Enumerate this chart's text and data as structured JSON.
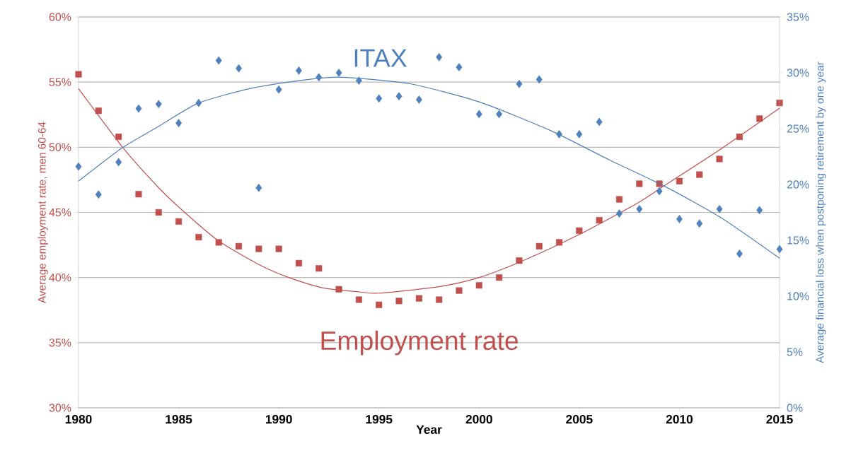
{
  "chart_data": {
    "type": "scatter",
    "xlabel": "Year",
    "ylabel": "Average employment rate, men 60-64",
    "y2label": "Average financial loss when postponing retirement by one year",
    "x": [
      1980,
      1981,
      1982,
      1983,
      1984,
      1985,
      1986,
      1987,
      1988,
      1989,
      1990,
      1991,
      1992,
      1993,
      1994,
      1995,
      1996,
      1997,
      1998,
      1999,
      2000,
      2001,
      2002,
      2003,
      2004,
      2005,
      2006,
      2007,
      2008,
      2009,
      2010,
      2011,
      2012,
      2013,
      2014,
      2015
    ],
    "series": [
      {
        "name": "Employment rate",
        "marker": "square",
        "color": "#c0504d",
        "values": [
          55.6,
          52.8,
          50.8,
          46.4,
          45.0,
          44.3,
          43.1,
          42.7,
          42.4,
          42.2,
          42.2,
          41.1,
          40.7,
          39.1,
          38.3,
          37.9,
          38.2,
          38.4,
          38.3,
          39.0,
          39.4,
          40.0,
          41.3,
          42.4,
          42.7,
          43.6,
          44.4,
          46.0,
          47.2,
          47.2,
          47.4,
          47.9,
          49.1,
          50.8,
          52.2,
          53.4
        ]
      },
      {
        "name": "ITAX",
        "marker": "diamond",
        "axis": "y2",
        "color": "#4f81bd",
        "values": [
          21.6,
          19.1,
          22.0,
          26.8,
          27.2,
          25.5,
          27.3,
          31.1,
          30.4,
          19.7,
          28.5,
          30.2,
          29.6,
          30.0,
          29.3,
          27.7,
          27.9,
          27.6,
          31.4,
          30.5,
          26.3,
          26.3,
          29.0,
          29.4,
          24.5,
          24.5,
          25.6,
          17.4,
          17.8,
          19.4,
          16.9,
          16.5,
          17.8,
          13.8,
          17.7,
          14.2
        ]
      },
      {
        "type": "line",
        "marker": "none",
        "color": "#c0504d",
        "x": [
          1980,
          1982.2,
          1984,
          1985.3,
          1987,
          1989,
          1990.5,
          1992.2,
          1994,
          1995,
          1998,
          2000,
          2002.2,
          2005,
          2007.9,
          2009.3,
          2012.1,
          2015
        ],
        "values": [
          54.5,
          50.0,
          46.9,
          45.0,
          42.8,
          41.0,
          40.0,
          39.2,
          38.9,
          38.8,
          39.3,
          40.0,
          41.3,
          43.3,
          45.7,
          47.1,
          49.9,
          53.0
        ]
      },
      {
        "type": "line",
        "marker": "none",
        "axis": "y2",
        "color": "#4f81bd",
        "x": [
          1980,
          1982.2,
          1984,
          1986,
          1988.6,
          1991,
          1992.7,
          1994,
          1996.6,
          2000,
          2003.6,
          2006.5,
          2009.3,
          2012.1,
          2015
        ],
        "values": [
          20.3,
          23.3,
          25.2,
          27.3,
          28.6,
          29.3,
          29.6,
          29.5,
          29.0,
          27.4,
          24.8,
          22.2,
          19.8,
          17.0,
          13.4
        ]
      }
    ],
    "xlim": [
      1980,
      2015
    ],
    "xticks": [
      1980,
      1985,
      1990,
      1995,
      2000,
      2005,
      2010,
      2015
    ],
    "ylim": [
      30,
      60
    ],
    "yticks": [
      {
        "value": 30,
        "label": "30%"
      },
      {
        "value": 35,
        "label": "35%"
      },
      {
        "value": 40,
        "label": "40%"
      },
      {
        "value": 45,
        "label": "45%"
      },
      {
        "value": 50,
        "label": "50%"
      },
      {
        "value": 55,
        "label": "55%"
      },
      {
        "value": 60,
        "label": "60%"
      }
    ],
    "y2lim": [
      0,
      35
    ],
    "y2ticks": [
      {
        "value": 0,
        "label": "0%"
      },
      {
        "value": 5,
        "label": "5%"
      },
      {
        "value": 10,
        "label": "10%"
      },
      {
        "value": 15,
        "label": "15%"
      },
      {
        "value": 20,
        "label": "20%"
      },
      {
        "value": 25,
        "label": "25%"
      },
      {
        "value": 30,
        "label": "30%"
      },
      {
        "value": 35,
        "label": "35%"
      }
    ],
    "grid": "y"
  }
}
